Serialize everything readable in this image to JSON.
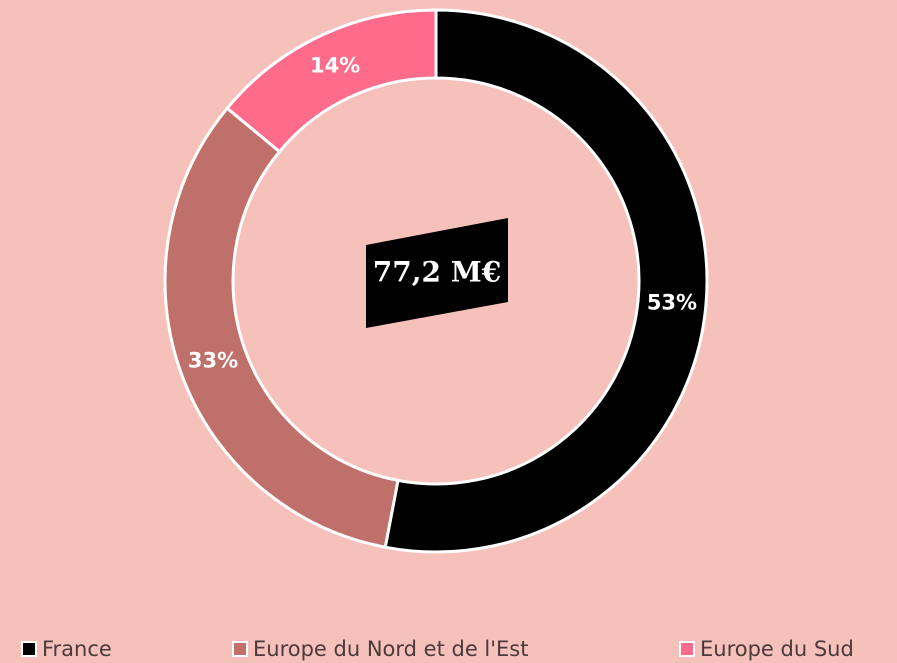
{
  "chart_data": {
    "type": "donut",
    "center_label": "77,2 M€",
    "categories": [
      "France",
      "Europe du Nord et de l'Est",
      "Europe du Sud"
    ],
    "values": [
      53,
      33,
      14
    ],
    "value_labels": [
      "53%",
      "33%",
      "14%"
    ],
    "colors": [
      "#000000",
      "#c0706a",
      "#ff6b8a"
    ]
  }
}
